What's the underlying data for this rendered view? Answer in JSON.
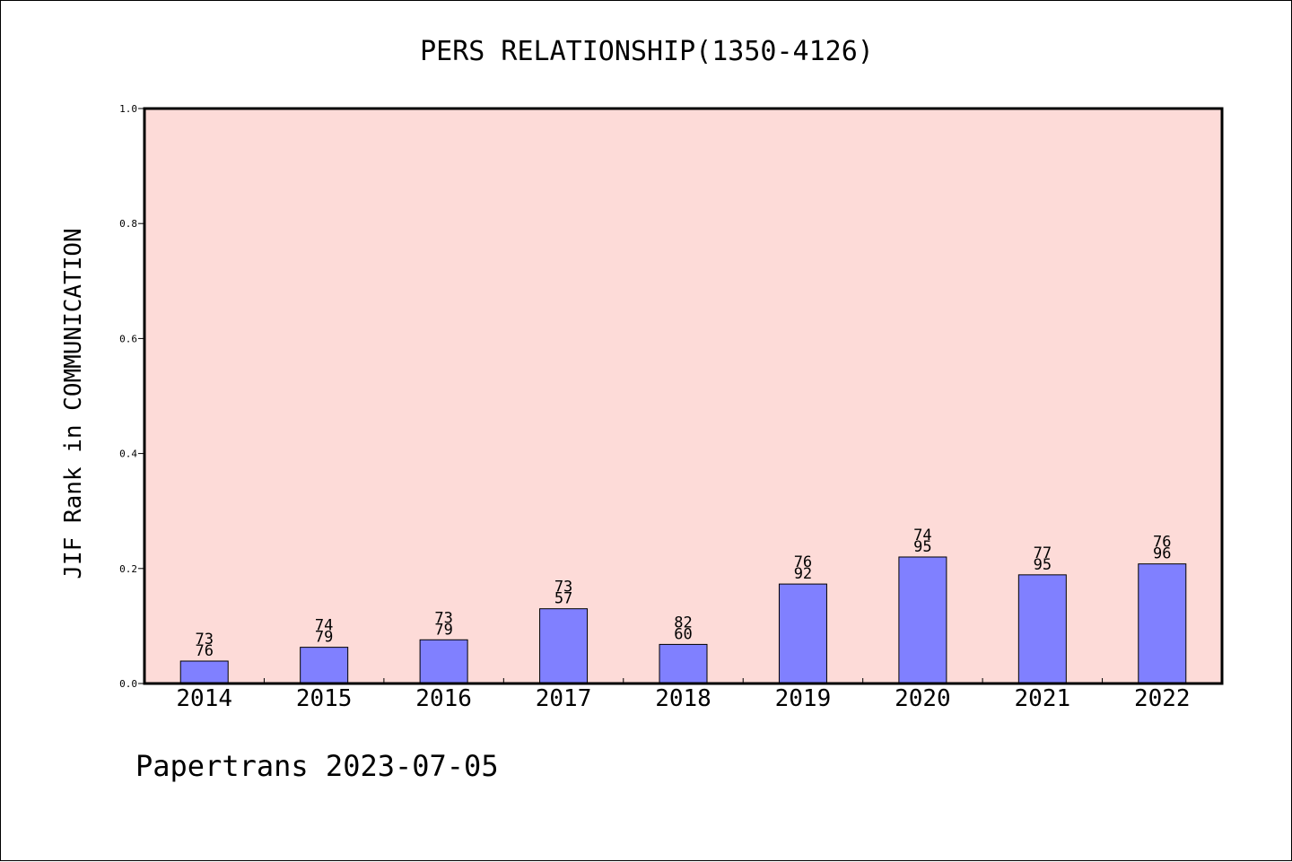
{
  "chart_data": {
    "type": "bar",
    "title": "PERS RELATIONSHIP(1350-4126)",
    "xlabel": "",
    "ylabel": "JIF Rank in COMMUNICATION",
    "ylim": [
      0.0,
      1.0
    ],
    "yticks": [
      "0.0",
      "0.2",
      "0.4",
      "0.6",
      "0.8",
      "1.0"
    ],
    "categories": [
      "2014",
      "2015",
      "2016",
      "2017",
      "2018",
      "2019",
      "2020",
      "2021",
      "2022"
    ],
    "values": [
      0.039,
      0.063,
      0.076,
      0.13,
      0.068,
      0.173,
      0.22,
      0.189,
      0.208
    ],
    "bar_labels": [
      [
        "73",
        "76"
      ],
      [
        "74",
        "79"
      ],
      [
        "73",
        "79"
      ],
      [
        "73",
        "57"
      ],
      [
        "82",
        "60"
      ],
      [
        "76",
        "92"
      ],
      [
        "74",
        "95"
      ],
      [
        "77",
        "95"
      ],
      [
        "76",
        "96"
      ]
    ],
    "grid": false,
    "colors": {
      "plot_background": "#fddbd8",
      "bar_fill": "#8080ff",
      "bar_edge": "#000000"
    }
  },
  "footer": {
    "text": "Papertrans 2023-07-05"
  }
}
